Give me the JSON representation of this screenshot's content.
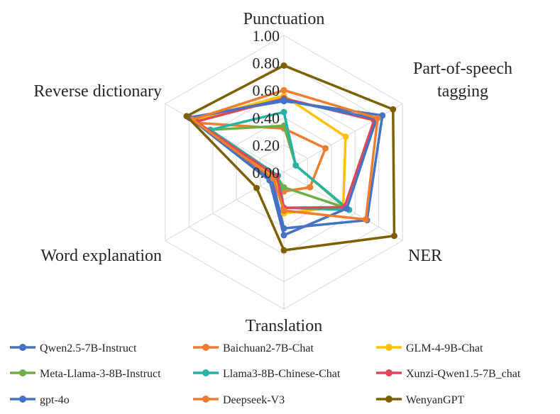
{
  "chart_data": {
    "type": "radar",
    "axes": [
      "Punctuation",
      "Part-of-speech\ntagging",
      "NER",
      "Translation",
      "Word explanation",
      "Reverse dictionary"
    ],
    "ticks": [
      "0.00",
      "0.20",
      "0.40",
      "0.60",
      "0.80",
      "1.00"
    ],
    "range": [
      0,
      1
    ],
    "grid": true,
    "legend": "bottom",
    "series": [
      {
        "name": "Qwen2.5-7B-Instruct",
        "color": "#4472c4",
        "values": [
          0.52,
          0.83,
          0.7,
          0.41,
          0.1,
          0.8
        ]
      },
      {
        "name": "Baichuan2-7B-Chat",
        "color": "#ed7d31",
        "values": [
          0.32,
          0.35,
          0.22,
          0.14,
          0.07,
          0.72
        ]
      },
      {
        "name": "GLM-4-9B-Chat",
        "color": "#ffc000",
        "values": [
          0.56,
          0.52,
          0.5,
          0.3,
          0.07,
          0.76
        ]
      },
      {
        "name": "Meta-Llama-3-8B-Instruct",
        "color": "#70ad47",
        "values": [
          0.34,
          0.1,
          0.52,
          0.11,
          0.06,
          0.62
        ]
      },
      {
        "name": "Llama3-8B-Chinese-Chat",
        "color": "#26b3a4",
        "values": [
          0.44,
          0.1,
          0.55,
          0.26,
          0.05,
          0.62
        ]
      },
      {
        "name": "Xunzi-Qwen1.5-7B_chat",
        "color": "#e0475b",
        "values": [
          0.54,
          0.76,
          0.51,
          0.26,
          0.06,
          0.74
        ]
      },
      {
        "name": "gpt-4o",
        "color": "#4472c4",
        "values": [
          0.53,
          0.78,
          0.53,
          0.46,
          0.12,
          0.79
        ]
      },
      {
        "name": "Deepseek-V3",
        "color": "#ed7d31",
        "values": [
          0.6,
          0.79,
          0.69,
          0.28,
          0.09,
          0.77
        ]
      },
      {
        "name": "WenyanGPT",
        "color": "#7f6000",
        "values": [
          0.78,
          0.92,
          0.93,
          0.57,
          0.23,
          0.82
        ]
      }
    ]
  }
}
